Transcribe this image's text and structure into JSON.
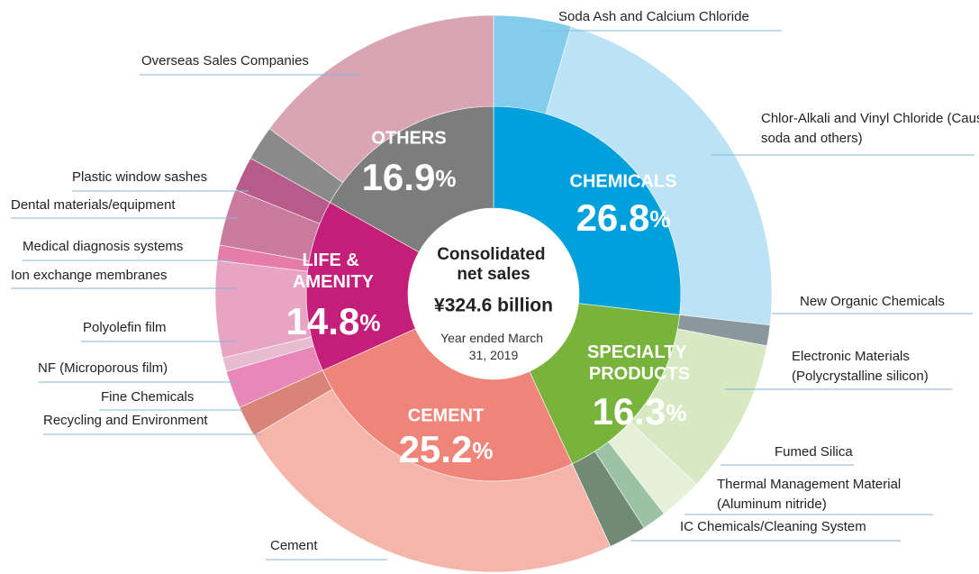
{
  "chart_data": {
    "type": "sunburst",
    "center": {
      "title": "Consolidated net sales",
      "value": "¥324.6 billion",
      "note": "Year ended March 31, 2019"
    },
    "categories": [
      "CHEMICALS",
      "SPECIALTY PRODUCTS",
      "CEMENT",
      "LIFE & AMENITY",
      "OTHERS"
    ],
    "values": [
      26.8,
      16.3,
      25.2,
      14.8,
      16.9
    ],
    "value_labels": [
      "26.8%",
      "16.3%",
      "25.2%",
      "14.8%",
      "16.9%"
    ],
    "colors": [
      "#00a0dc",
      "#78b43c",
      "#ef857a",
      "#c41e78",
      "#7d7d7d"
    ],
    "subsegments": [
      [
        {
          "name": "Soda Ash and Calcium Chloride",
          "value": 4.5,
          "color": "#84ccec"
        },
        {
          "name": "Chlor-Alkali and Vinyl Chloride (Caustic soda and others)",
          "value": 22.3,
          "color": "#bce2f5"
        }
      ],
      [
        {
          "name": "New Organic Chemicals",
          "value": 1.2,
          "color": "#8a979c"
        },
        {
          "name": "Electronic Materials (Polycrystalline silicon)",
          "value": 9.0,
          "color": "#d7e9c3"
        },
        {
          "name": "Fumed Silica",
          "value": 2.5,
          "color": "#e6f0d9"
        },
        {
          "name": "Thermal Management Material (Aluminum nitride)",
          "value": 1.4,
          "color": "#9cc2a6"
        },
        {
          "name": "IC Chemicals/Cleaning System",
          "value": 2.2,
          "color": "#718a74"
        }
      ],
      [
        {
          "name": "Cement",
          "value": 23.4,
          "color": "#f5b5aa"
        },
        {
          "name": "Recycling and Environment",
          "value": 1.8,
          "color": "#d88479"
        }
      ],
      [
        {
          "name": "Fine Chemicals",
          "value": 2.2,
          "color": "#e888b9"
        },
        {
          "name": "NF (Microporous film)",
          "value": 0.8,
          "color": "#e8bccf"
        },
        {
          "name": "Polyolefin film",
          "value": 5.6,
          "color": "#e7a5c3"
        },
        {
          "name": "Ion exchange membranes",
          "value": 0.9,
          "color": "#e47ba9"
        },
        {
          "name": "Medical diagnosis systems",
          "value": 3.3,
          "color": "#c97a9d"
        },
        {
          "name": "Dental materials/equipment",
          "value": 2.0,
          "color": "#b75b8b"
        }
      ],
      [
        {
          "name": "Plastic window sashes",
          "value": 2.0,
          "color": "#8a8a8a"
        },
        {
          "name": "Overseas Sales Companies",
          "value": 14.9,
          "color": "#d9a5b2"
        }
      ]
    ]
  }
}
